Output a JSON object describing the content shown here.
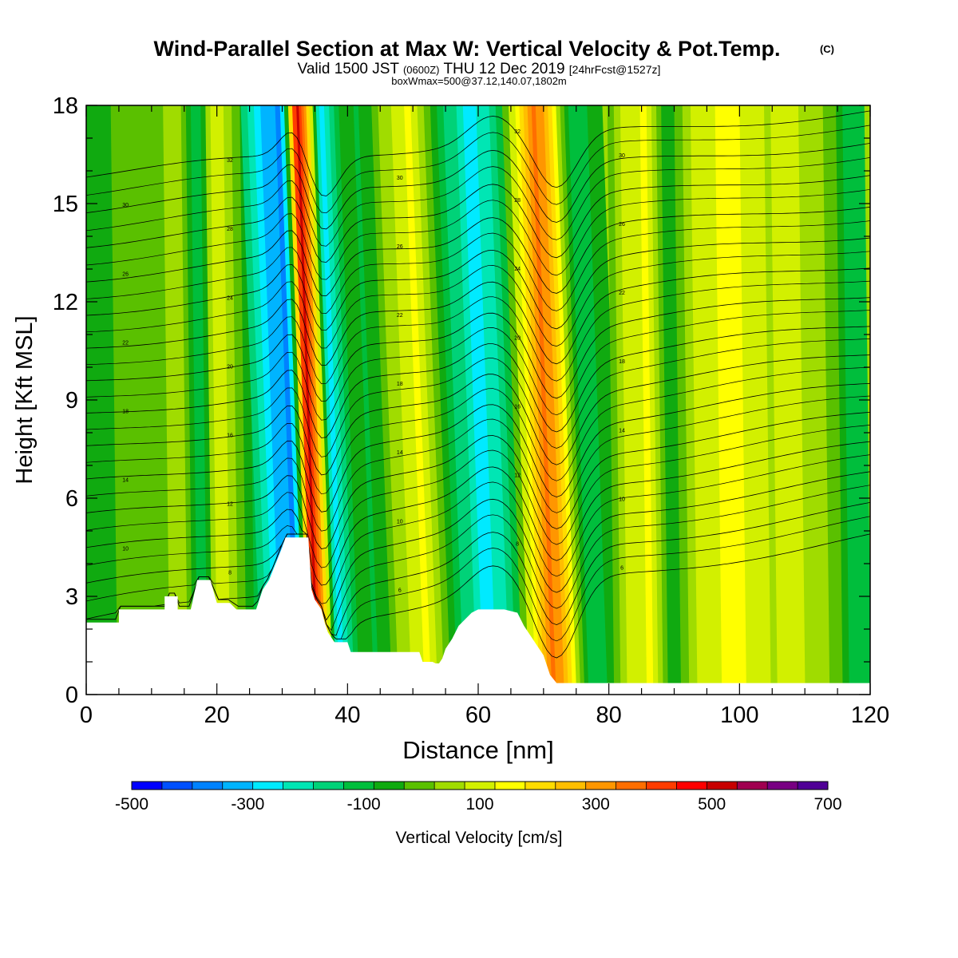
{
  "header": {
    "title": "Wind-Parallel Section at Max W: Vertical Velocity & Pot.Temp.",
    "title_mark": "(C)",
    "subtitle_prefix": "Valid 1500 JST",
    "subtitle_zulu": "(0600Z)",
    "subtitle_date": "THU 12 Dec 2019",
    "subtitle_fcst": "[24hrFcst@1527z]",
    "subline": "boxWmax=500@37.12,140.07,1802m"
  },
  "chart_data": {
    "type": "heatmap",
    "xlabel": "Distance [nm]",
    "ylabel": "Height [Kft MSL]",
    "xlim": [
      0,
      120
    ],
    "ylim": [
      0,
      18
    ],
    "xticks": [
      0,
      20,
      40,
      60,
      80,
      100,
      120
    ],
    "yticks": [
      0,
      3,
      6,
      9,
      12,
      15,
      18
    ],
    "colorbar": {
      "label": "Vertical Velocity [cm/s]",
      "range": [
        -500,
        700
      ],
      "tick_labels": [
        "-500",
        "-300",
        "-100",
        "100",
        "300",
        "500",
        "700"
      ],
      "colors": [
        "#0000ff",
        "#0050ff",
        "#0082ff",
        "#00b4ff",
        "#00eaff",
        "#00e6b4",
        "#00d278",
        "#00be3c",
        "#10aa10",
        "#5ac000",
        "#a0dc00",
        "#d2f000",
        "#ffff00",
        "#ffdc00",
        "#ffbe00",
        "#ff9600",
        "#ff6e00",
        "#ff3c00",
        "#ff0000",
        "#c80000",
        "#a00050",
        "#780082",
        "#500096"
      ]
    },
    "velocity_bands": [
      {
        "x": 0,
        "w": -40
      },
      {
        "x": 12,
        "w": -20
      },
      {
        "x": 16,
        "w": 60
      },
      {
        "x": 19,
        "w": -120
      },
      {
        "x": 22,
        "w": 110
      },
      {
        "x": 27,
        "w": -90
      },
      {
        "x": 31,
        "w": -290
      },
      {
        "x": 34,
        "w": -370
      },
      {
        "x": 36.5,
        "w": 520
      },
      {
        "x": 38,
        "w": 300
      },
      {
        "x": 40,
        "w": -280
      },
      {
        "x": 43,
        "w": -60
      },
      {
        "x": 46,
        "w": -90
      },
      {
        "x": 50,
        "w": 50
      },
      {
        "x": 54,
        "w": 140
      },
      {
        "x": 58,
        "w": -80
      },
      {
        "x": 62,
        "w": -250
      },
      {
        "x": 66,
        "w": -230
      },
      {
        "x": 70,
        "w": 150
      },
      {
        "x": 72.5,
        "w": 360
      },
      {
        "x": 75,
        "w": 260
      },
      {
        "x": 77.5,
        "w": -60
      },
      {
        "x": 80,
        "w": -130
      },
      {
        "x": 84,
        "w": 100
      },
      {
        "x": 88,
        "w": 140
      },
      {
        "x": 91,
        "w": -60
      },
      {
        "x": 96,
        "w": 110
      },
      {
        "x": 101,
        "w": 150
      },
      {
        "x": 106,
        "w": 70
      },
      {
        "x": 110,
        "w": 90
      },
      {
        "x": 115,
        "w": 30
      },
      {
        "x": 119,
        "w": -110
      },
      {
        "x": 120,
        "w": -90
      }
    ],
    "terrain": [
      [
        0,
        2.2
      ],
      [
        5,
        2.2
      ],
      [
        5,
        2.6
      ],
      [
        10,
        2.6
      ],
      [
        10,
        2.6
      ],
      [
        12,
        2.6
      ],
      [
        12,
        3.0
      ],
      [
        14,
        3.0
      ],
      [
        14,
        2.6
      ],
      [
        16,
        2.6
      ],
      [
        17,
        3.5
      ],
      [
        19,
        3.5
      ],
      [
        20,
        2.8
      ],
      [
        22,
        2.8
      ],
      [
        23,
        2.6
      ],
      [
        26,
        2.6
      ],
      [
        27,
        3.2
      ],
      [
        28,
        3.5
      ],
      [
        30,
        4.5
      ],
      [
        30.5,
        4.8
      ],
      [
        34,
        4.8
      ],
      [
        34.5,
        3.2
      ],
      [
        35,
        2.9
      ],
      [
        36,
        2.6
      ],
      [
        36.5,
        2.2
      ],
      [
        37,
        1.9
      ],
      [
        38,
        1.6
      ],
      [
        40,
        1.6
      ],
      [
        40.5,
        1.3
      ],
      [
        42,
        1.3
      ],
      [
        45,
        1.3
      ],
      [
        50,
        1.3
      ],
      [
        51,
        1.3
      ],
      [
        51.5,
        1.0
      ],
      [
        53,
        1.0
      ],
      [
        53.5,
        0.95
      ],
      [
        54,
        0.95
      ],
      [
        54.5,
        1.1
      ],
      [
        55,
        1.4
      ],
      [
        56,
        1.7
      ],
      [
        57,
        2.1
      ],
      [
        58,
        2.3
      ],
      [
        59,
        2.5
      ],
      [
        60,
        2.6
      ],
      [
        61,
        2.6
      ],
      [
        63,
        2.6
      ],
      [
        64,
        2.6
      ],
      [
        66,
        2.5
      ],
      [
        67,
        2.1
      ],
      [
        68,
        1.8
      ],
      [
        69,
        1.5
      ],
      [
        70,
        1.2
      ],
      [
        70.5,
        0.9
      ],
      [
        71,
        0.6
      ],
      [
        72,
        0.35
      ],
      [
        75,
        0.35
      ],
      [
        120,
        0.35
      ]
    ],
    "contour_levels": [
      4,
      6,
      8,
      10,
      12,
      14,
      16,
      18,
      20,
      22,
      24,
      26,
      28,
      30,
      32
    ],
    "contour_labels_shown": [
      "6",
      "8",
      "10",
      "12",
      "14",
      "16",
      "18",
      "20",
      "22",
      "24",
      "26",
      "28",
      "30",
      "32"
    ],
    "grid": false
  }
}
